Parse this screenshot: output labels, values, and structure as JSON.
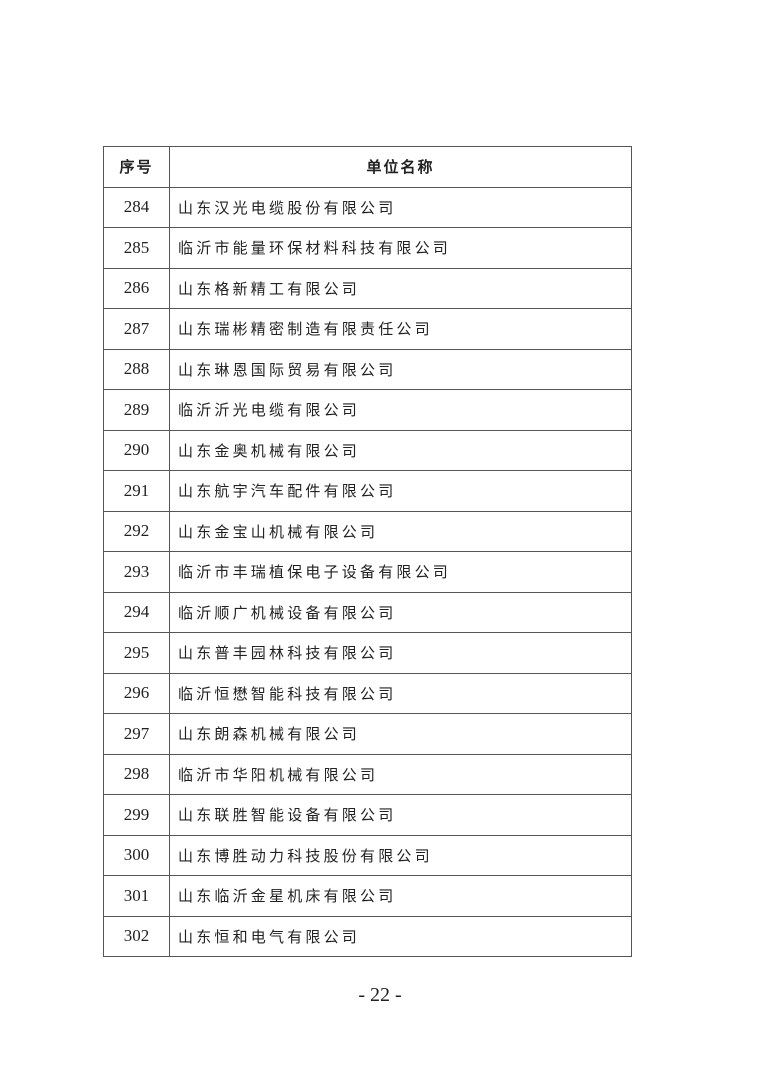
{
  "table": {
    "headers": [
      "序号",
      "单位名称"
    ],
    "rows": [
      [
        "284",
        "山东汉光电缆股份有限公司"
      ],
      [
        "285",
        "临沂市能量环保材料科技有限公司"
      ],
      [
        "286",
        "山东格新精工有限公司"
      ],
      [
        "287",
        "山东瑞彬精密制造有限责任公司"
      ],
      [
        "288",
        "山东琳恩国际贸易有限公司"
      ],
      [
        "289",
        "临沂沂光电缆有限公司"
      ],
      [
        "290",
        "山东金奥机械有限公司"
      ],
      [
        "291",
        "山东航宇汽车配件有限公司"
      ],
      [
        "292",
        "山东金宝山机械有限公司"
      ],
      [
        "293",
        "临沂市丰瑞植保电子设备有限公司"
      ],
      [
        "294",
        "临沂顺广机械设备有限公司"
      ],
      [
        "295",
        "山东普丰园林科技有限公司"
      ],
      [
        "296",
        "临沂恒懋智能科技有限公司"
      ],
      [
        "297",
        "山东朗森机械有限公司"
      ],
      [
        "298",
        "临沂市华阳机械有限公司"
      ],
      [
        "299",
        "山东联胜智能设备有限公司"
      ],
      [
        "300",
        "山东博胜动力科技股份有限公司"
      ],
      [
        "301",
        "山东临沂金星机床有限公司"
      ],
      [
        "302",
        "山东恒和电气有限公司"
      ]
    ]
  },
  "page_number": "- 22 -"
}
